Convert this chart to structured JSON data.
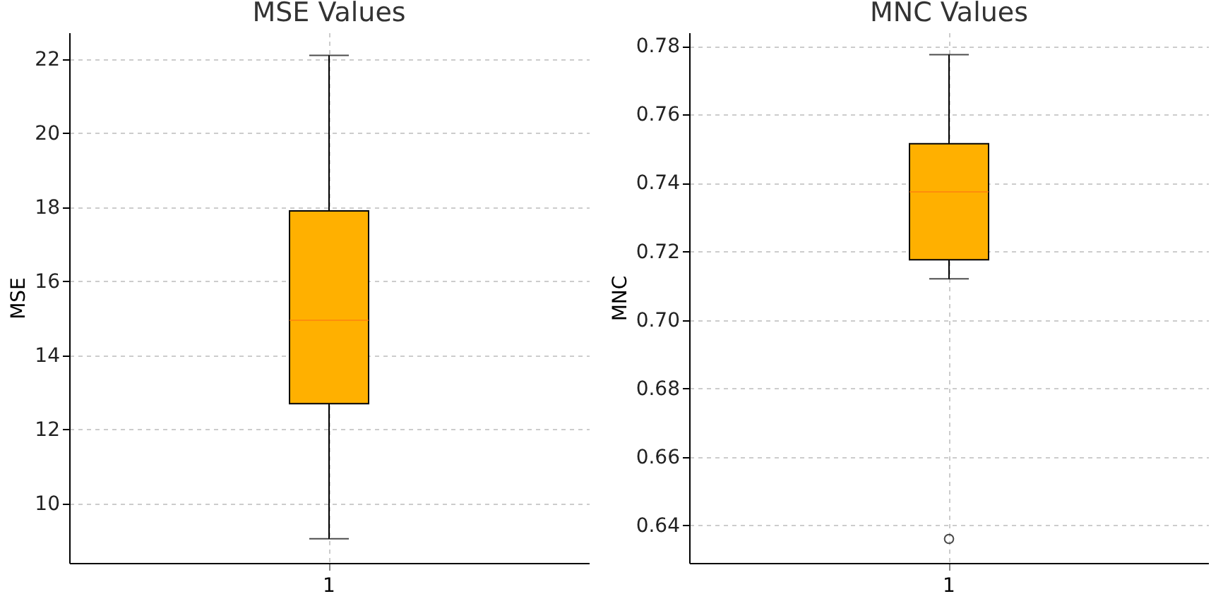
{
  "chart_data": [
    {
      "type": "box",
      "title": "MSE Values",
      "ylabel": "MSE",
      "categories": [
        "1"
      ],
      "ylim": [
        8.4,
        22.72
      ],
      "yticks": [
        10,
        12,
        14,
        16,
        18,
        20,
        22
      ],
      "grid": true,
      "series": [
        {
          "color": "#ffb000",
          "boxes": [
            {
              "low": 9.05,
              "q1": 12.7,
              "median": 14.95,
              "q3": 17.9,
              "high": 22.1
            }
          ]
        }
      ]
    },
    {
      "type": "box",
      "title": "MNC Values",
      "ylabel": "MNC",
      "categories": [
        "1"
      ],
      "ylim": [
        0.629,
        0.784
      ],
      "yticks": [
        0.64,
        0.66,
        0.68,
        {
          "value": 0.7,
          "label": "0.70"
        },
        0.72,
        0.74,
        0.76,
        0.78
      ],
      "grid": true,
      "series": [
        {
          "color": "#ffb000",
          "boxes": [
            {
              "low": 0.712,
              "q1": 0.7176,
              "median": 0.7374,
              "q3": 0.7515,
              "high": 0.7775,
              "outliers": [
                0.636
              ]
            }
          ]
        }
      ]
    }
  ]
}
